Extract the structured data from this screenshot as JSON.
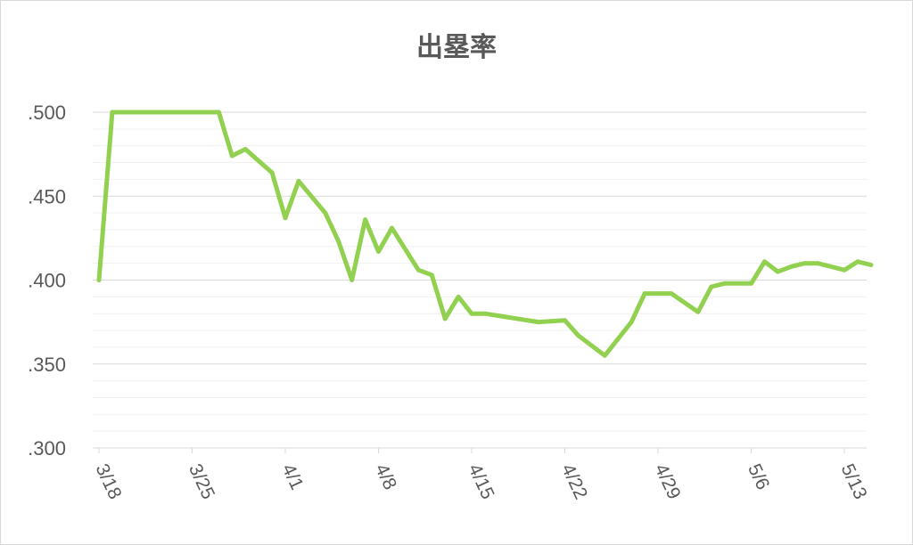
{
  "chart_data": {
    "type": "line",
    "title": "出塁率",
    "xlabel": "",
    "ylabel": "",
    "ylim": [
      0.3,
      0.5
    ],
    "yticks": [
      ".300",
      ".350",
      ".400",
      ".450",
      ".500"
    ],
    "y_tick_values": [
      0.3,
      0.35,
      0.4,
      0.45,
      0.5
    ],
    "minor_gridlines_step": 0.01,
    "grid": true,
    "legend": "none",
    "line_color": "#92d050",
    "x_tick_labels": [
      "3/18",
      "3/25",
      "4/1",
      "4/8",
      "4/15",
      "4/22",
      "4/29",
      "5/6",
      "5/13"
    ],
    "series": [
      {
        "x": [
          "3/18",
          "3/19",
          "3/27",
          "3/28",
          "3/29",
          "3/31",
          "4/1",
          "4/2",
          "4/4",
          "4/5",
          "4/6",
          "4/7",
          "4/8",
          "4/9",
          "4/11",
          "4/12",
          "4/13",
          "4/14",
          "4/15",
          "4/16",
          "4/20",
          "4/22",
          "4/23",
          "4/25",
          "4/27",
          "4/28",
          "4/30",
          "5/2",
          "5/3",
          "5/4",
          "5/6",
          "5/7",
          "5/8",
          "5/9",
          "5/10",
          "5/11",
          "5/13",
          "5/14",
          "5/15"
        ],
        "values": [
          0.4,
          0.5,
          0.5,
          0.474,
          0.478,
          0.464,
          0.437,
          0.459,
          0.44,
          0.423,
          0.4,
          0.436,
          0.417,
          0.431,
          0.406,
          0.403,
          0.377,
          0.39,
          0.38,
          0.38,
          0.375,
          0.376,
          0.367,
          0.355,
          0.375,
          0.392,
          0.392,
          0.381,
          0.396,
          0.398,
          0.398,
          0.411,
          0.405,
          0.408,
          0.41,
          0.41,
          0.406,
          0.411,
          0.409
        ]
      }
    ]
  }
}
